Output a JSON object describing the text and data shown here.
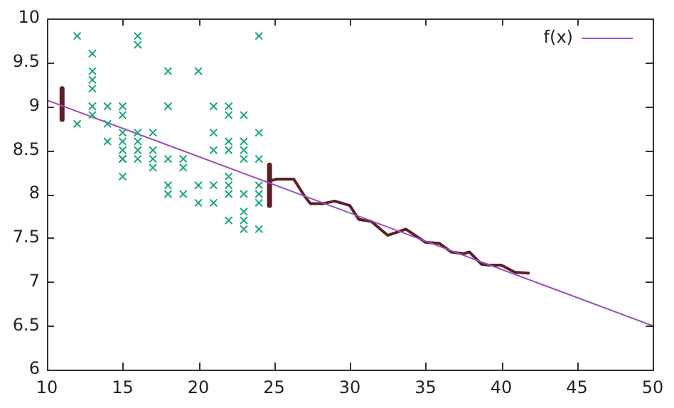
{
  "chart_data": {
    "type": "line",
    "xlim": [
      10,
      50
    ],
    "ylim": [
      6,
      10
    ],
    "xticks": [
      10,
      15,
      20,
      25,
      30,
      35,
      40,
      45,
      50
    ],
    "yticks": [
      6,
      6.5,
      7,
      7.5,
      8,
      8.5,
      9,
      9.5,
      10
    ],
    "grid": false,
    "legend": "top right",
    "series": [
      {
        "type": "scatter",
        "marker": "cross",
        "color": "#1aa57e",
        "x": [
          12,
          12,
          13,
          13,
          13,
          13,
          13,
          13,
          14,
          14,
          14,
          15,
          15,
          15,
          15,
          15,
          15,
          15,
          15,
          16,
          16,
          16,
          16,
          16,
          16,
          17,
          17,
          17,
          17,
          18,
          18,
          18,
          18,
          18,
          19,
          19,
          19,
          20,
          20,
          20,
          21,
          21,
          21,
          21,
          21,
          22,
          22,
          22,
          22,
          22,
          22,
          22,
          22,
          23,
          23,
          23,
          23,
          23,
          23,
          23,
          23,
          24,
          24,
          24,
          24,
          24,
          24,
          24
        ],
        "values": [
          9.8,
          8.8,
          9.6,
          9.4,
          9.3,
          9.2,
          9.0,
          8.9,
          9.0,
          8.8,
          8.6,
          9.0,
          8.9,
          8.7,
          8.6,
          8.5,
          8.4,
          8.4,
          8.2,
          9.8,
          9.7,
          8.7,
          8.6,
          8.5,
          8.4,
          8.7,
          8.5,
          8.4,
          8.3,
          9.4,
          9.0,
          8.4,
          8.1,
          8.0,
          8.4,
          8.3,
          8.0,
          9.4,
          8.1,
          7.9,
          9.0,
          8.7,
          8.5,
          8.1,
          7.9,
          9.0,
          8.9,
          8.6,
          8.5,
          8.2,
          8.1,
          8.0,
          7.7,
          8.9,
          8.6,
          8.5,
          8.4,
          8.0,
          7.8,
          7.7,
          7.6,
          9.8,
          8.7,
          8.4,
          8.1,
          8.0,
          7.9,
          7.6
        ]
      },
      {
        "name": "f(x)",
        "color": "#9b4fc0",
        "marker": "none",
        "x": [
          10,
          50
        ],
        "values": [
          9.07,
          6.5
        ]
      },
      {
        "color": "#5c1e27",
        "marker": "none",
        "x": [
          24.7,
          25.2,
          26.3,
          27.0,
          27.4,
          28.2,
          29.0,
          30.0,
          30.6,
          31.4,
          32.5,
          33.7,
          35.0,
          35.9,
          36.7,
          37.5,
          37.9,
          38.7,
          39.2,
          40.0,
          40.9,
          41.8
        ],
        "values": [
          8.15,
          8.17,
          8.17,
          7.98,
          7.89,
          7.89,
          7.92,
          7.87,
          7.71,
          7.69,
          7.53,
          7.6,
          7.45,
          7.44,
          7.34,
          7.32,
          7.34,
          7.2,
          7.19,
          7.19,
          7.11,
          7.1
        ]
      },
      {
        "color": "#5c1e27",
        "marker": "none",
        "x": [
          11.0,
          11.0
        ],
        "values": [
          9.2,
          8.85
        ]
      },
      {
        "color": "#5c1e27",
        "marker": "none",
        "x": [
          24.7,
          24.7
        ],
        "values": [
          8.33,
          7.87
        ]
      }
    ]
  }
}
